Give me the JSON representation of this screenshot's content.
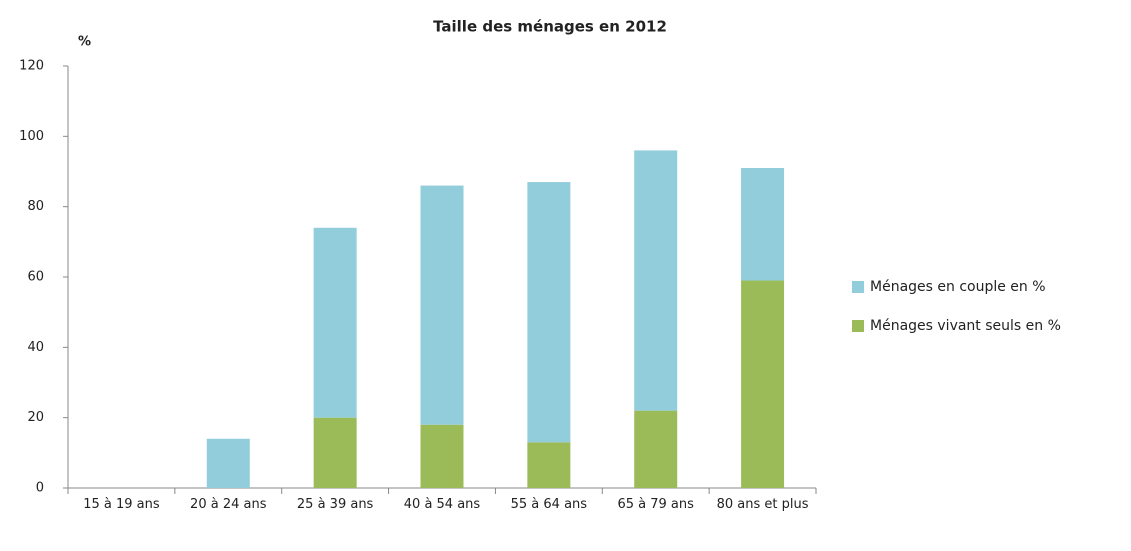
{
  "chart_data": {
    "type": "stacked_bar",
    "title": "Taille des ménages en 2012",
    "y_label": "%",
    "categories": [
      "15 à 19 ans",
      "20 à 24 ans",
      "25 à 39 ans",
      "40 à 54 ans",
      "55 à 64 ans",
      "65 à 79 ans",
      "80 ans et plus"
    ],
    "series": [
      {
        "name": "Ménages en couple en %",
        "color": "#92cddc",
        "values": [
          0,
          14,
          54,
          68,
          74,
          74,
          32
        ]
      },
      {
        "name": "Ménages vivant seuls en %",
        "color": "#9bbb59",
        "values": [
          0,
          0,
          20,
          18,
          13,
          22,
          59
        ]
      }
    ],
    "ylim": [
      0,
      120
    ],
    "yticks": [
      0,
      20,
      40,
      60,
      80,
      100,
      120
    ],
    "grid": false,
    "legend": "right"
  }
}
